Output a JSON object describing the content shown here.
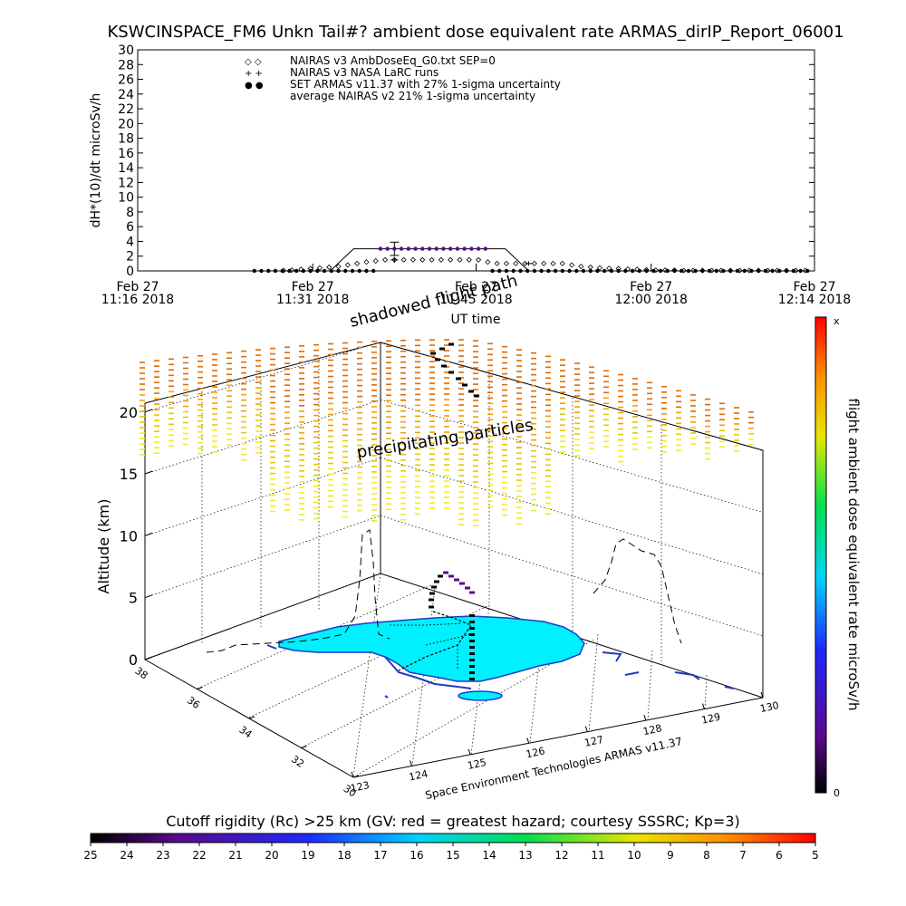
{
  "title": "KSWCINSPACE_FM6 Unkn Tail#? ambient dose equivalent rate ARMAS_dirIP_Report_06001",
  "chart_data": [
    {
      "type": "scatter",
      "ylabel": "dH*(10)/dt microSv/h",
      "xlabel": "UT time",
      "ylim": [
        0,
        30
      ],
      "yticks": [
        0,
        2,
        4,
        6,
        8,
        10,
        12,
        14,
        16,
        18,
        20,
        22,
        24,
        26,
        28,
        30
      ],
      "xlim_minutes": [
        0,
        58
      ],
      "xticks": [
        {
          "t": 0,
          "line1": "Feb 27",
          "line2": "11:16 2018"
        },
        {
          "t": 15,
          "line1": "Feb 27",
          "line2": "11:31 2018"
        },
        {
          "t": 29,
          "line1": "Feb 27",
          "line2": "11:45 2018"
        },
        {
          "t": 44,
          "line1": "Feb 27",
          "line2": "12:00 2018"
        },
        {
          "t": 58,
          "line1": "Feb 27",
          "line2": "12:14 2018"
        }
      ],
      "legend": {
        "placement": "top-left",
        "entries": [
          {
            "symbol": "◇ ◇",
            "label": "NAIRAS v3 AmbDoseEq_G0.txt SEP=0"
          },
          {
            "symbol": "+ +",
            "label": "NAIRAS v3 NASA LaRC runs"
          },
          {
            "symbol": "● ●",
            "label": "SET ARMAS v11.37 with 27% 1-sigma uncertainty",
            "color": "#1e3cc8"
          },
          {
            "symbol": "",
            "label": "average NAIRAS v2 21% 1-sigma uncertainty"
          }
        ]
      },
      "series": [
        {
          "name": "NAIRAS v3 AmbDoseEq_G0.txt SEP=0",
          "marker": "diamond",
          "x": [
            12.5,
            13.2,
            14,
            14.8,
            15.6,
            16.4,
            17.2,
            18,
            18.8,
            19.6,
            20.4,
            21.2,
            22,
            22.8,
            23.6,
            24.4,
            25.2,
            26,
            26.8,
            27.6,
            28.4,
            29.2,
            30,
            30.8,
            31.6,
            32.4,
            33.2,
            34,
            34.8,
            35.6,
            36.4,
            37.2,
            38,
            38.8,
            39.6,
            40.4,
            41.2,
            42,
            42.8,
            43.6,
            44.4,
            45.2,
            46,
            46.8,
            47.6,
            48.4,
            49.2,
            50,
            50.8,
            51.6,
            52.4,
            53.2,
            54,
            54.8,
            55.6,
            56.4,
            57.2
          ],
          "y": [
            0.05,
            0.1,
            0.2,
            0.3,
            0.4,
            0.5,
            0.6,
            0.8,
            1.0,
            1.2,
            1.35,
            1.5,
            1.5,
            1.5,
            1.5,
            1.5,
            1.5,
            1.5,
            1.5,
            1.5,
            1.5,
            1.5,
            1.2,
            1.0,
            1.0,
            1.0,
            1.0,
            1.0,
            1.0,
            1.0,
            1.0,
            0.8,
            0.6,
            0.5,
            0.4,
            0.35,
            0.3,
            0.25,
            0.2,
            0.15,
            0.1,
            0.1,
            0.1,
            0.05,
            0.05,
            0.05,
            0.05,
            0.05,
            0.05,
            0.05,
            0.05,
            0.05,
            0.05,
            0.05,
            0.05,
            0.05,
            0.05
          ]
        },
        {
          "name": "NAIRAS v3 NASA LaRC runs",
          "marker": "plus",
          "x": [
            22,
            33.5
          ],
          "y": [
            1.5,
            1.0
          ],
          "err": [
            0.4,
            0.3
          ]
        },
        {
          "name": "SET ARMAS v11.37 with 27% 1-sigma uncertainty",
          "marker": "dot",
          "x": [
            10,
            10.6,
            11.2,
            11.8,
            12.4,
            13,
            13.6,
            14.2,
            14.8,
            15.4,
            16,
            16.6,
            17.2,
            17.8,
            18.4,
            19,
            19.6,
            20.2,
            20.8,
            21.4,
            22,
            22.6,
            23.2,
            23.8,
            24.4,
            25,
            25.6,
            26.2,
            26.8,
            27.4,
            28,
            28.6,
            29.2,
            29.8,
            30.4,
            31,
            31.6,
            32.2,
            32.8,
            33.4,
            34,
            34.6,
            35.2,
            35.8,
            36.4,
            37,
            37.6,
            38.2,
            38.8,
            39.4,
            40,
            40.6,
            41.2,
            41.8,
            42.4,
            43,
            43.6,
            44.2,
            44.8,
            45.4,
            46,
            46.6,
            47.2,
            47.8,
            48.4,
            49,
            49.6,
            50.2,
            50.8,
            51.4,
            52,
            52.6,
            53.2,
            53.8,
            54.4,
            55,
            55.6,
            56.2,
            56.8,
            57.4
          ],
          "y": [
            0,
            0,
            0,
            0,
            0,
            0,
            0,
            0,
            0,
            0,
            0,
            0,
            0,
            0,
            0,
            0,
            0,
            0,
            3,
            3,
            3,
            3,
            3,
            3,
            3,
            3,
            3,
            3,
            3,
            3,
            3,
            3,
            3,
            3,
            0,
            0,
            0,
            0,
            0,
            0,
            0,
            0,
            0,
            0,
            0,
            0,
            0,
            0,
            0,
            0,
            0,
            0,
            0,
            0,
            0,
            0,
            0,
            0,
            0,
            0,
            0,
            0,
            0,
            0,
            0,
            0,
            0,
            0,
            0,
            0,
            0,
            0,
            0,
            0,
            0,
            0,
            0,
            0,
            0,
            0
          ]
        },
        {
          "name": "average NAIRAS v2 21% 1-sigma uncertainty",
          "marker": "line",
          "x": [
            10,
            16.5,
            18.5,
            31.5,
            33.5,
            58
          ],
          "y": [
            0,
            0,
            3,
            3,
            0,
            0
          ],
          "err_point": {
            "x": 22,
            "y": 3,
            "err": 0.9
          }
        }
      ]
    },
    {
      "type": "3d-scatter",
      "zlabel": "Altitude (km)",
      "zticks": [
        0,
        5,
        10,
        15,
        20
      ],
      "lat_ticks": [
        30,
        32,
        34,
        36,
        38
      ],
      "lon_ticks": [
        123,
        124,
        125,
        126,
        127,
        128,
        129,
        130
      ],
      "annotations": [
        "shadowed flight path",
        "precipitating particles"
      ],
      "credit": "Space Environment Technologies ARMAS v11.37",
      "colorbar": {
        "label": "flight ambient dose equivalent rate microSv/h",
        "top_label": "x",
        "bottom_label": "0"
      }
    },
    {
      "type": "colorbar",
      "title": "Cutoff rigidity (Rc) >25 km (GV: red = greatest hazard; courtesy SSSRC; Kp=3)",
      "ticks": [
        25,
        24,
        23,
        22,
        21,
        20,
        19,
        18,
        17,
        16,
        15,
        14,
        13,
        12,
        11,
        10,
        9,
        8,
        7,
        6,
        5
      ]
    }
  ]
}
